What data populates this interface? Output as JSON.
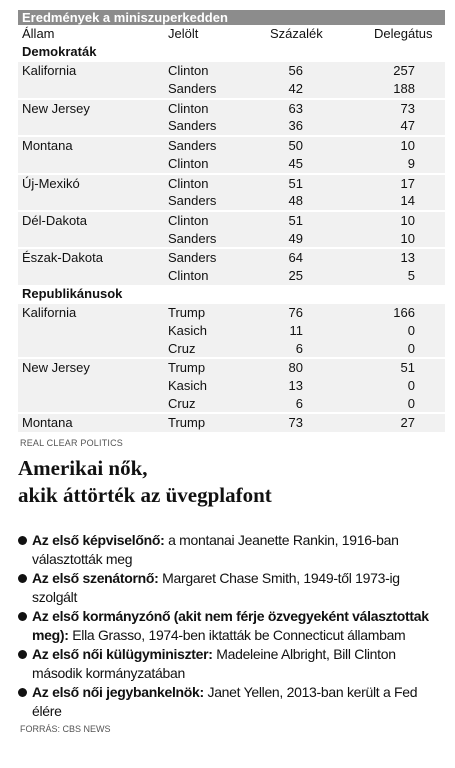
{
  "table": {
    "title": "Eredmények a miniszuperkedden",
    "columns": [
      "Állam",
      "Jelölt",
      "Százalék",
      "Delegátus"
    ],
    "sections": [
      {
        "name": "Demokraták",
        "groups": [
          {
            "state": "Kalifornia",
            "rows": [
              [
                "Clinton",
                56,
                257
              ],
              [
                "Sanders",
                42,
                188
              ]
            ]
          },
          {
            "state": "New Jersey",
            "rows": [
              [
                "Clinton",
                63,
                73
              ],
              [
                "Sanders",
                36,
                47
              ]
            ]
          },
          {
            "state": "Montana",
            "rows": [
              [
                "Sanders",
                50,
                10
              ],
              [
                "Clinton",
                45,
                9
              ]
            ]
          },
          {
            "state": "Új-Mexikó",
            "rows": [
              [
                "Clinton",
                51,
                17
              ],
              [
                "Sanders",
                48,
                14
              ]
            ]
          },
          {
            "state": "Dél-Dakota",
            "rows": [
              [
                "Clinton",
                51,
                10
              ],
              [
                "Sanders",
                49,
                10
              ]
            ]
          },
          {
            "state": "Észak-Dakota",
            "rows": [
              [
                "Sanders",
                64,
                13
              ],
              [
                "Clinton",
                25,
                5
              ]
            ]
          }
        ]
      },
      {
        "name": "Republikánusok",
        "groups": [
          {
            "state": "Kalifornia",
            "rows": [
              [
                "Trump",
                76,
                166
              ],
              [
                "Kasich",
                11,
                0
              ],
              [
                "Cruz",
                6,
                0
              ]
            ]
          },
          {
            "state": "New Jersey",
            "rows": [
              [
                "Trump",
                80,
                51
              ],
              [
                "Kasich",
                13,
                0
              ],
              [
                "Cruz",
                6,
                0
              ]
            ]
          },
          {
            "state": "Montana",
            "rows": [
              [
                "Trump",
                73,
                27
              ]
            ]
          }
        ]
      }
    ],
    "source": "REAL CLEAR POLITICS"
  },
  "article": {
    "title_lines": [
      "Amerikai nők,",
      "akik áttörték az üvegplafont"
    ],
    "items": [
      {
        "bold": "Az első képviselőnő:",
        "text": " a montanai Jeanette Rankin, 1916-ban választották meg"
      },
      {
        "bold": "Az első szenátornő:",
        "text": " Margaret Chase Smith, 1949-től 1973-ig szolgált"
      },
      {
        "bold": "Az első kormányzónő (akit nem férje özvegyeként választottak meg):",
        "text": " Ella Grasso, 1974-ben iktatták be Connecticut állambam"
      },
      {
        "bold": "Az első női külügyminiszter:",
        "text": " Madeleine Albright, Bill Clinton második kormányzatában"
      },
      {
        "bold": "Az első női jegybankelnök:",
        "text": " Janet Yellen, 2013-ban került a Fed élére"
      }
    ],
    "source": "FORRÁS: CBS NEWS"
  }
}
